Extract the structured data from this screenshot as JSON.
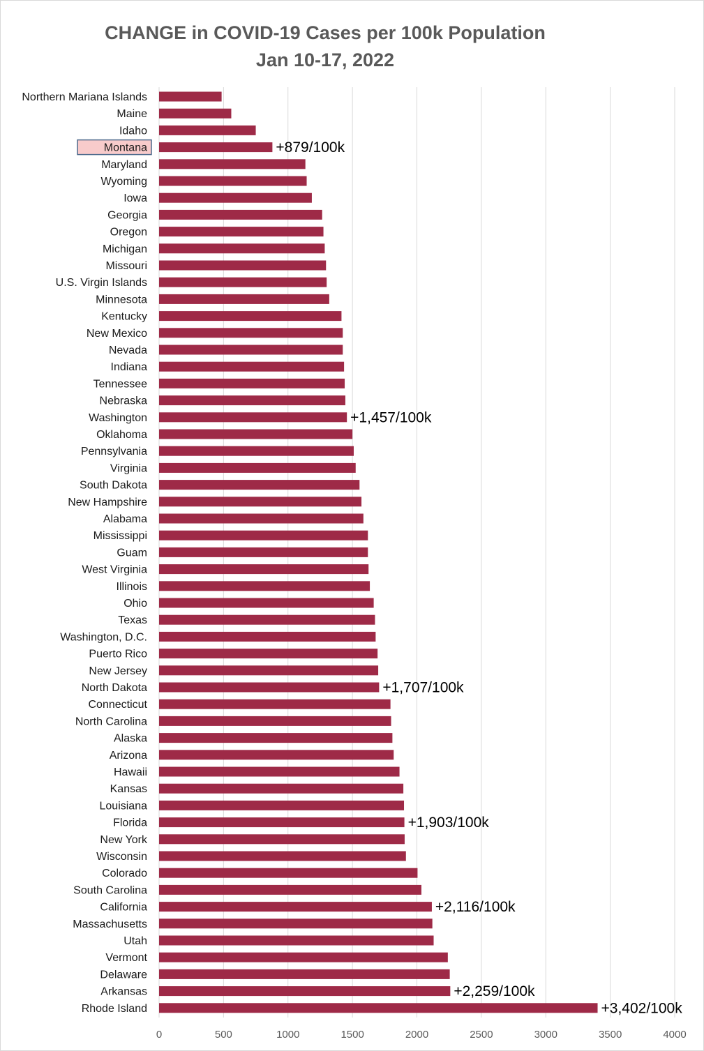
{
  "chart_data": {
    "type": "bar",
    "orientation": "horizontal",
    "title": "CHANGE in COVID-19 Cases per 100k Population",
    "subtitle": "Jan 10-17, 2022",
    "xlabel": "",
    "ylabel": "",
    "xlim": [
      0,
      4000
    ],
    "xticks": [
      0,
      500,
      1000,
      1500,
      2000,
      2500,
      3000,
      3500,
      4000
    ],
    "grid": true,
    "bar_color": "#9e2a47",
    "highlight_color": "#f8cbcb",
    "highlight_border": "#4d6a8c",
    "highlight_category": "Montana",
    "categories": [
      "Northern Mariana Islands",
      "Maine",
      "Idaho",
      "Montana",
      "Maryland",
      "Wyoming",
      "Iowa",
      "Georgia",
      "Oregon",
      "Michigan",
      "Missouri",
      "U.S. Virgin Islands",
      "Minnesota",
      "Kentucky",
      "New Mexico",
      "Nevada",
      "Indiana",
      "Tennessee",
      "Nebraska",
      "Washington",
      "Oklahoma",
      "Pennsylvania",
      "Virginia",
      "South Dakota",
      "New Hampshire",
      "Alabama",
      "Mississippi",
      "Guam",
      "West Virginia",
      "Illinois",
      "Ohio",
      "Texas",
      "Washington, D.C.",
      "Puerto Rico",
      "New Jersey",
      "North Dakota",
      "Connecticut",
      "North Carolina",
      "Alaska",
      "Arizona",
      "Hawaii",
      "Kansas",
      "Louisiana",
      "Florida",
      "New York",
      "Wisconsin",
      "Colorado",
      "South Carolina",
      "California",
      "Massachusetts",
      "Utah",
      "Vermont",
      "Delaware",
      "Arkansas",
      "Rhode Island"
    ],
    "values": [
      485,
      560,
      750,
      879,
      1135,
      1145,
      1185,
      1265,
      1275,
      1285,
      1295,
      1300,
      1320,
      1415,
      1425,
      1425,
      1435,
      1440,
      1445,
      1457,
      1500,
      1510,
      1525,
      1555,
      1570,
      1585,
      1620,
      1620,
      1625,
      1635,
      1665,
      1675,
      1680,
      1695,
      1700,
      1707,
      1795,
      1800,
      1810,
      1820,
      1865,
      1895,
      1900,
      1903,
      1905,
      1915,
      2005,
      2035,
      2116,
      2120,
      2130,
      2240,
      2255,
      2259,
      3402
    ],
    "annotations": [
      {
        "category": "Montana",
        "text": "+879/100k"
      },
      {
        "category": "Washington",
        "text": "+1,457/100k"
      },
      {
        "category": "North Dakota",
        "text": "+1,707/100k"
      },
      {
        "category": "Florida",
        "text": "+1,903/100k"
      },
      {
        "category": "California",
        "text": "+2,116/100k"
      },
      {
        "category": "Arkansas",
        "text": "+2,259/100k"
      },
      {
        "category": "Rhode Island",
        "text": "+3,402/100k"
      }
    ]
  }
}
